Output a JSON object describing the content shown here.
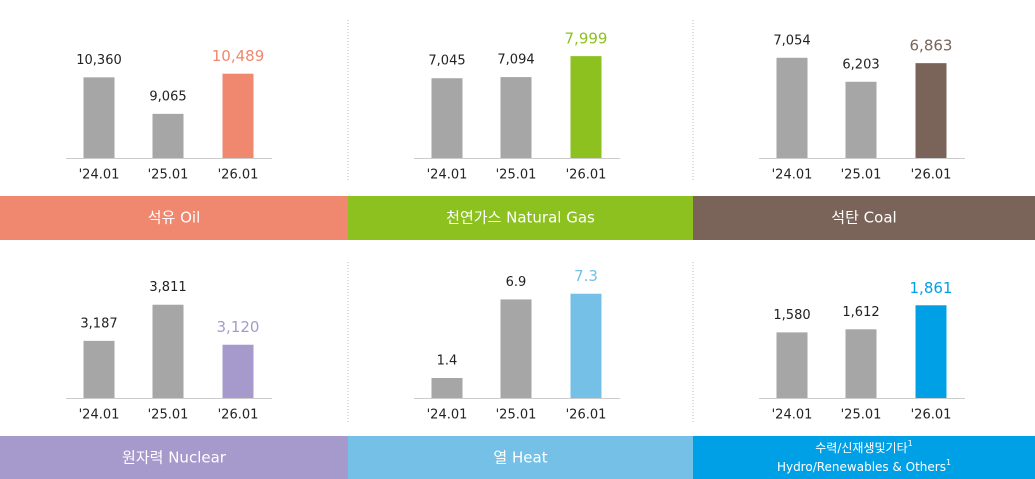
{
  "chart_data": [
    {
      "type": "bar",
      "title": "석유 Oil",
      "categories": [
        "'24.01",
        "'25.01",
        "'26.01"
      ],
      "values": [
        10360,
        9065,
        10489
      ],
      "value_labels": [
        "10,360",
        "9,065",
        "10,489"
      ],
      "colors": [
        "#a6a6a6",
        "#a6a6a6",
        "#f0876f"
      ],
      "band_color": "#f0876f",
      "ylim": [
        7500,
        11400
      ]
    },
    {
      "type": "bar",
      "title": "천연가스 Natural Gas",
      "categories": [
        "'24.01",
        "'25.01",
        "'26.01"
      ],
      "values": [
        7045,
        7094,
        7999
      ],
      "value_labels": [
        "7,045",
        "7,094",
        "7,999"
      ],
      "colors": [
        "#a6a6a6",
        "#a6a6a6",
        "#8cc11f"
      ],
      "band_color": "#8cc11f",
      "ylim": [
        3600,
        8350
      ]
    },
    {
      "type": "bar",
      "title": "석탄 Coal",
      "categories": [
        "'24.01",
        "'25.01",
        "'26.01"
      ],
      "values": [
        7054,
        6203,
        6863
      ],
      "value_labels": [
        "7,054",
        "6,203",
        "6,863"
      ],
      "colors": [
        "#a6a6a6",
        "#a6a6a6",
        "#7a6358"
      ],
      "band_color": "#7a6358",
      "ylim": [
        3500,
        7400
      ]
    },
    {
      "type": "bar",
      "title": "원자력 Nuclear",
      "categories": [
        "'24.01",
        "'25.01",
        "'26.01"
      ],
      "values": [
        3187,
        3811,
        3120
      ],
      "value_labels": [
        "3,187",
        "3,811",
        "3,120"
      ],
      "colors": [
        "#a6a6a6",
        "#a6a6a6",
        "#a59acb"
      ],
      "band_color": "#a59acb",
      "ylim": [
        2200,
        4100
      ]
    },
    {
      "type": "bar",
      "title": "열 Heat",
      "categories": [
        "'24.01",
        "'25.01",
        "'26.01"
      ],
      "values": [
        1.4,
        6.9,
        7.3
      ],
      "colors": [
        "#a6a6a6",
        "#a6a6a6",
        "#74c0e6"
      ],
      "band_color": "#74c0e6",
      "ylim": [
        0,
        7.7
      ]
    },
    {
      "type": "bar",
      "title": [
        "수력/신재생및기타",
        "Hydro/Renewables & Others"
      ],
      "title_note": "1",
      "categories": [
        "'24.01",
        "'25.01",
        "'26.01"
      ],
      "values": [
        1580,
        1612,
        1861
      ],
      "value_labels": [
        "1,580",
        "1,612",
        "1,861"
      ],
      "colors": [
        "#a6a6a6",
        "#a6a6a6",
        "#00a0e6"
      ],
      "band_color": "#00a0e6",
      "ylim": [
        900,
        2040
      ]
    }
  ]
}
